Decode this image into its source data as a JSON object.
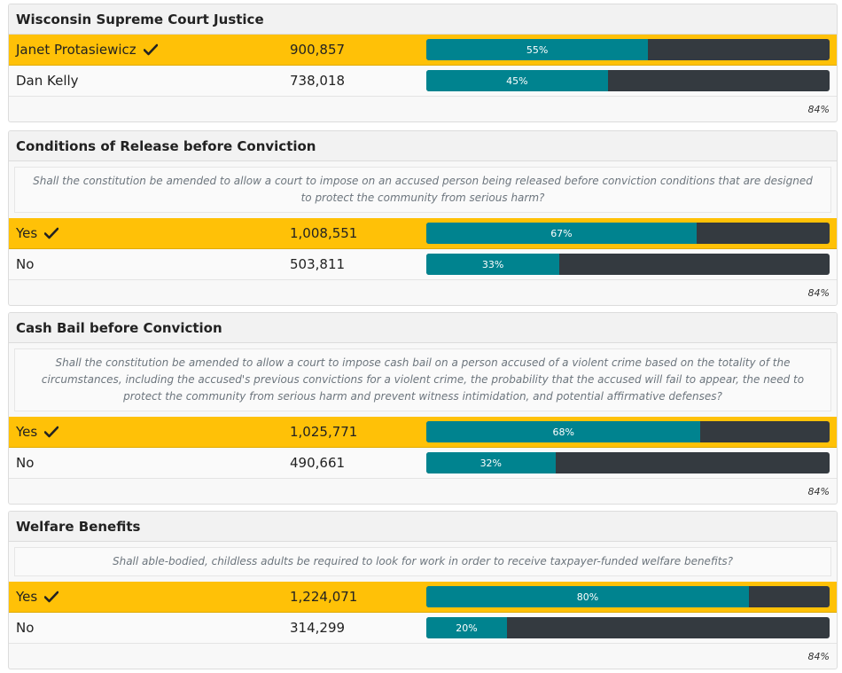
{
  "races": [
    {
      "title": "Wisconsin Supreme Court Justice",
      "question": "",
      "candidates": [
        {
          "name": "Janet Protasiewicz",
          "votes": "900,857",
          "pct_label": "55%",
          "pct": 55,
          "winner": true
        },
        {
          "name": "Dan Kelly",
          "votes": "738,018",
          "pct_label": "45%",
          "pct": 45,
          "winner": false
        }
      ],
      "reporting": "84%"
    },
    {
      "title": "Conditions of Release before Conviction",
      "question": "Shall the constitution be amended to allow a court to impose on an accused person being released before conviction conditions that are designed to protect the community from serious harm?",
      "candidates": [
        {
          "name": "Yes",
          "votes": "1,008,551",
          "pct_label": "67%",
          "pct": 67,
          "winner": true
        },
        {
          "name": "No",
          "votes": "503,811",
          "pct_label": "33%",
          "pct": 33,
          "winner": false
        }
      ],
      "reporting": "84%"
    },
    {
      "title": "Cash Bail before Conviction",
      "question": "Shall the constitution be amended to allow a court to impose cash bail on a person accused of a violent crime based on the totality of the circumstances, including the accused's previous convictions for a violent crime, the probability that the accused will fail to appear, the need to protect the community from serious harm and prevent witness intimidation, and potential affirmative defenses?",
      "candidates": [
        {
          "name": "Yes",
          "votes": "1,025,771",
          "pct_label": "68%",
          "pct": 68,
          "winner": true
        },
        {
          "name": "No",
          "votes": "490,661",
          "pct_label": "32%",
          "pct": 32,
          "winner": false
        }
      ],
      "reporting": "84%"
    },
    {
      "title": "Welfare Benefits",
      "question": "Shall able-bodied, childless adults be required to look for work in order to receive taxpayer-funded welfare benefits?",
      "candidates": [
        {
          "name": "Yes",
          "votes": "1,224,071",
          "pct_label": "80%",
          "pct": 80,
          "winner": true
        },
        {
          "name": "No",
          "votes": "314,299",
          "pct_label": "20%",
          "pct": 20,
          "winner": false
        }
      ],
      "reporting": "84%"
    }
  ],
  "colors": {
    "winner_row": "#ffc107",
    "bar_fill": "#00838f",
    "bar_track": "#343a40"
  },
  "icons": {
    "winner": "checkmark-icon"
  }
}
